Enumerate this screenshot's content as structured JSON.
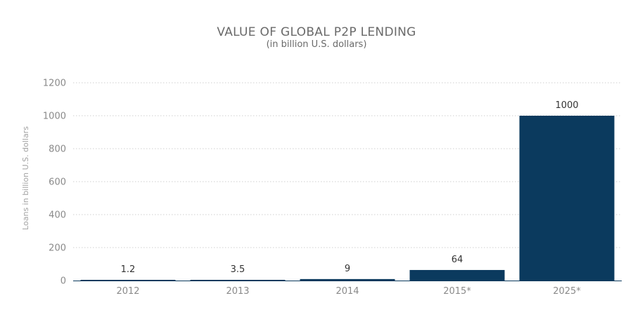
{
  "chart_data": {
    "type": "bar",
    "title": "VALUE OF GLOBAL P2P LENDING",
    "subtitle": "(in billion U.S. dollars)",
    "ylabel": "Loans in billion U.S. dollars",
    "xlabel": "",
    "categories": [
      "2012",
      "2013",
      "2014",
      "2015*",
      "2025*"
    ],
    "values": [
      1.2,
      3.5,
      9,
      64,
      1000
    ],
    "data_labels": [
      "1.2",
      "3.5",
      "9",
      "64",
      "1000"
    ],
    "ylim": [
      0,
      1200
    ],
    "yticks": [
      0,
      200,
      400,
      600,
      800,
      1000,
      1200
    ],
    "grid": true,
    "bar_color": "#0b3a5e",
    "grid_color": "#cfcfcf",
    "axis_color": "#0b3a5e"
  }
}
